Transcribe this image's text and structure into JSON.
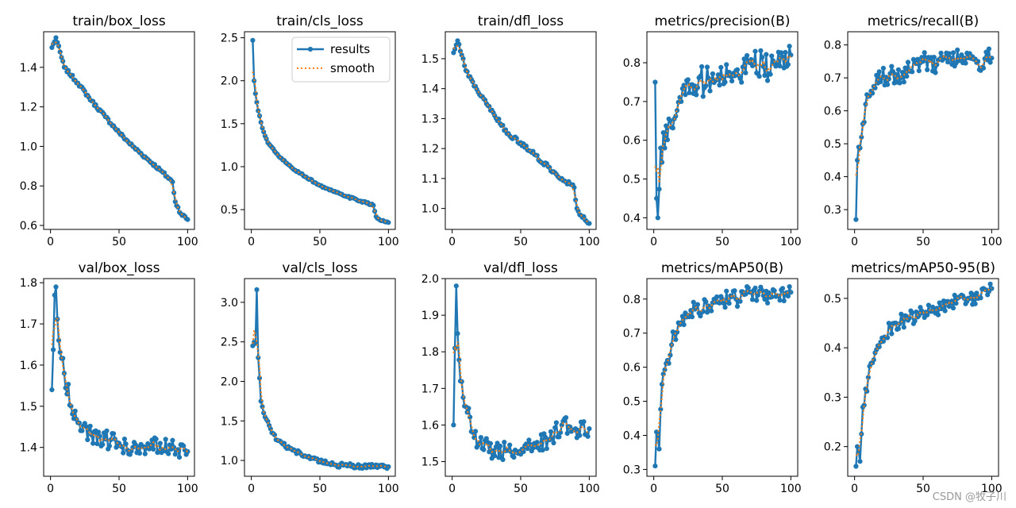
{
  "figure": {
    "watermark": "CSDN @牧子川",
    "legend_results": "results",
    "legend_smooth": "smooth"
  },
  "colors": {
    "results": "#1f77b4",
    "smooth": "#ff7f0e",
    "axis": "#000000"
  },
  "chart_data": [
    {
      "type": "line",
      "title": "train/box_loss",
      "xlim": [
        -5,
        105
      ],
      "ylim": [
        0.58,
        1.58
      ],
      "xticks": [
        0,
        50,
        100
      ],
      "yticks": [
        0.6,
        0.8,
        1.0,
        1.2,
        1.4
      ],
      "ytick_labels": [
        "0.6",
        "0.8",
        "1.0",
        "1.2",
        "1.4"
      ],
      "legend": false,
      "anchors": [
        [
          1,
          1.5
        ],
        [
          4,
          1.55
        ],
        [
          10,
          1.4
        ],
        [
          20,
          1.32
        ],
        [
          30,
          1.23
        ],
        [
          40,
          1.15
        ],
        [
          50,
          1.07
        ],
        [
          60,
          1.0
        ],
        [
          70,
          0.94
        ],
        [
          80,
          0.88
        ],
        [
          89,
          0.82
        ],
        [
          91,
          0.72
        ],
        [
          95,
          0.66
        ],
        [
          100,
          0.63
        ]
      ],
      "noise": 0.008
    },
    {
      "type": "line",
      "title": "train/cls_loss",
      "xlim": [
        -5,
        105
      ],
      "ylim": [
        0.27,
        2.57
      ],
      "xticks": [
        0,
        50,
        100
      ],
      "yticks": [
        0.5,
        1.0,
        1.5,
        2.0,
        2.5
      ],
      "ytick_labels": [
        "0.5",
        "1.0",
        "1.5",
        "2.0",
        "2.5"
      ],
      "legend": true,
      "anchors": [
        [
          1,
          2.47
        ],
        [
          2,
          2.0
        ],
        [
          3,
          1.85
        ],
        [
          5,
          1.65
        ],
        [
          8,
          1.45
        ],
        [
          12,
          1.28
        ],
        [
          20,
          1.12
        ],
        [
          30,
          0.98
        ],
        [
          40,
          0.88
        ],
        [
          50,
          0.78
        ],
        [
          60,
          0.71
        ],
        [
          70,
          0.65
        ],
        [
          80,
          0.6
        ],
        [
          89,
          0.55
        ],
        [
          91,
          0.42
        ],
        [
          95,
          0.37
        ],
        [
          100,
          0.35
        ]
      ],
      "noise": 0.01
    },
    {
      "type": "line",
      "title": "train/dfl_loss",
      "xlim": [
        -5,
        105
      ],
      "ylim": [
        0.93,
        1.59
      ],
      "xticks": [
        0,
        50,
        100
      ],
      "yticks": [
        1.0,
        1.1,
        1.2,
        1.3,
        1.4,
        1.5
      ],
      "ytick_labels": [
        "1.0",
        "1.1",
        "1.2",
        "1.3",
        "1.4",
        "1.5"
      ],
      "legend": false,
      "anchors": [
        [
          1,
          1.52
        ],
        [
          4,
          1.56
        ],
        [
          10,
          1.46
        ],
        [
          20,
          1.38
        ],
        [
          30,
          1.32
        ],
        [
          40,
          1.25
        ],
        [
          50,
          1.22
        ],
        [
          60,
          1.18
        ],
        [
          70,
          1.14
        ],
        [
          80,
          1.1
        ],
        [
          89,
          1.07
        ],
        [
          91,
          1.0
        ],
        [
          95,
          0.97
        ],
        [
          100,
          0.95
        ]
      ],
      "noise": 0.007
    },
    {
      "type": "line",
      "title": "metrics/precision(B)",
      "xlim": [
        -5,
        105
      ],
      "ylim": [
        0.37,
        0.88
      ],
      "xticks": [
        0,
        50,
        100
      ],
      "yticks": [
        0.4,
        0.5,
        0.6,
        0.7,
        0.8
      ],
      "ytick_labels": [
        "0.4",
        "0.5",
        "0.6",
        "0.7",
        "0.8"
      ],
      "legend": false,
      "anchors": [
        [
          1,
          0.75
        ],
        [
          2,
          0.45
        ],
        [
          3,
          0.4
        ],
        [
          5,
          0.58
        ],
        [
          8,
          0.58
        ],
        [
          12,
          0.65
        ],
        [
          20,
          0.7
        ],
        [
          30,
          0.74
        ],
        [
          40,
          0.76
        ],
        [
          50,
          0.76
        ],
        [
          60,
          0.78
        ],
        [
          70,
          0.8
        ],
        [
          80,
          0.79
        ],
        [
          90,
          0.8
        ],
        [
          100,
          0.82
        ]
      ],
      "noise": 0.04
    },
    {
      "type": "line",
      "title": "metrics/recall(B)",
      "xlim": [
        -5,
        105
      ],
      "ylim": [
        0.24,
        0.84
      ],
      "xticks": [
        0,
        50,
        100
      ],
      "yticks": [
        0.3,
        0.4,
        0.5,
        0.6,
        0.7,
        0.8
      ],
      "ytick_labels": [
        "0.3",
        "0.4",
        "0.5",
        "0.6",
        "0.7",
        "0.8"
      ],
      "legend": false,
      "anchors": [
        [
          1,
          0.27
        ],
        [
          2,
          0.45
        ],
        [
          3,
          0.49
        ],
        [
          5,
          0.52
        ],
        [
          8,
          0.62
        ],
        [
          12,
          0.66
        ],
        [
          20,
          0.7
        ],
        [
          30,
          0.71
        ],
        [
          40,
          0.72
        ],
        [
          50,
          0.75
        ],
        [
          60,
          0.74
        ],
        [
          70,
          0.76
        ],
        [
          80,
          0.76
        ],
        [
          90,
          0.75
        ],
        [
          100,
          0.76
        ]
      ],
      "noise": 0.03
    },
    {
      "type": "line",
      "title": "val/box_loss",
      "xlim": [
        -5,
        105
      ],
      "ylim": [
        1.33,
        1.81
      ],
      "xticks": [
        0,
        50,
        100
      ],
      "yticks": [
        1.4,
        1.5,
        1.6,
        1.7,
        1.8
      ],
      "ytick_labels": [
        "1.4",
        "1.5",
        "1.6",
        "1.7",
        "1.8"
      ],
      "legend": false,
      "anchors": [
        [
          1,
          1.54
        ],
        [
          3,
          1.77
        ],
        [
          4,
          1.79
        ],
        [
          6,
          1.66
        ],
        [
          10,
          1.58
        ],
        [
          15,
          1.5
        ],
        [
          20,
          1.46
        ],
        [
          30,
          1.43
        ],
        [
          40,
          1.42
        ],
        [
          50,
          1.41
        ],
        [
          60,
          1.4
        ],
        [
          70,
          1.4
        ],
        [
          80,
          1.41
        ],
        [
          90,
          1.4
        ],
        [
          100,
          1.39
        ]
      ],
      "noise": 0.022
    },
    {
      "type": "line",
      "title": "val/cls_loss",
      "xlim": [
        -5,
        105
      ],
      "ylim": [
        0.8,
        3.3
      ],
      "xticks": [
        0,
        50,
        100
      ],
      "yticks": [
        1.0,
        1.5,
        2.0,
        2.5,
        3.0
      ],
      "ytick_labels": [
        "1.0",
        "1.5",
        "2.0",
        "2.5",
        "3.0"
      ],
      "legend": false,
      "anchors": [
        [
          1,
          2.45
        ],
        [
          3,
          2.48
        ],
        [
          4,
          3.16
        ],
        [
          5,
          2.3
        ],
        [
          7,
          1.75
        ],
        [
          10,
          1.55
        ],
        [
          15,
          1.35
        ],
        [
          20,
          1.25
        ],
        [
          30,
          1.13
        ],
        [
          40,
          1.05
        ],
        [
          50,
          0.98
        ],
        [
          60,
          0.95
        ],
        [
          70,
          0.93
        ],
        [
          80,
          0.93
        ],
        [
          90,
          0.92
        ],
        [
          100,
          0.92
        ]
      ],
      "noise": 0.03
    },
    {
      "type": "line",
      "title": "val/dfl_loss",
      "xlim": [
        -5,
        105
      ],
      "ylim": [
        1.46,
        2.0
      ],
      "xticks": [
        0,
        50,
        100
      ],
      "yticks": [
        1.5,
        1.6,
        1.7,
        1.8,
        1.9,
        2.0
      ],
      "ytick_labels": [
        "1.5",
        "1.6",
        "1.7",
        "1.8",
        "1.9",
        "2.0"
      ],
      "legend": false,
      "anchors": [
        [
          1,
          1.6
        ],
        [
          3,
          1.98
        ],
        [
          4,
          1.85
        ],
        [
          6,
          1.72
        ],
        [
          10,
          1.65
        ],
        [
          15,
          1.58
        ],
        [
          20,
          1.55
        ],
        [
          30,
          1.53
        ],
        [
          40,
          1.53
        ],
        [
          50,
          1.52
        ],
        [
          60,
          1.55
        ],
        [
          70,
          1.56
        ],
        [
          80,
          1.6
        ],
        [
          90,
          1.59
        ],
        [
          100,
          1.59
        ]
      ],
      "noise": 0.025
    },
    {
      "type": "line",
      "title": "metrics/mAP50(B)",
      "xlim": [
        -5,
        105
      ],
      "ylim": [
        0.28,
        0.86
      ],
      "xticks": [
        0,
        50,
        100
      ],
      "yticks": [
        0.3,
        0.4,
        0.5,
        0.6,
        0.7,
        0.8
      ],
      "ytick_labels": [
        "0.3",
        "0.4",
        "0.5",
        "0.6",
        "0.7",
        "0.8"
      ],
      "legend": false,
      "anchors": [
        [
          1,
          0.31
        ],
        [
          2,
          0.41
        ],
        [
          4,
          0.36
        ],
        [
          6,
          0.55
        ],
        [
          10,
          0.62
        ],
        [
          15,
          0.7
        ],
        [
          20,
          0.73
        ],
        [
          30,
          0.77
        ],
        [
          40,
          0.78
        ],
        [
          50,
          0.8
        ],
        [
          60,
          0.8
        ],
        [
          70,
          0.82
        ],
        [
          80,
          0.81
        ],
        [
          90,
          0.81
        ],
        [
          100,
          0.82
        ]
      ],
      "noise": 0.025
    },
    {
      "type": "line",
      "title": "metrics/mAP50-95(B)",
      "xlim": [
        -5,
        105
      ],
      "ylim": [
        0.14,
        0.54
      ],
      "xticks": [
        0,
        50,
        100
      ],
      "yticks": [
        0.2,
        0.3,
        0.4,
        0.5
      ],
      "ytick_labels": [
        "0.2",
        "0.3",
        "0.4",
        "0.5"
      ],
      "legend": false,
      "anchors": [
        [
          1,
          0.16
        ],
        [
          2,
          0.2
        ],
        [
          4,
          0.17
        ],
        [
          6,
          0.28
        ],
        [
          10,
          0.34
        ],
        [
          15,
          0.39
        ],
        [
          20,
          0.42
        ],
        [
          30,
          0.45
        ],
        [
          40,
          0.46
        ],
        [
          50,
          0.47
        ],
        [
          60,
          0.48
        ],
        [
          70,
          0.49
        ],
        [
          80,
          0.5
        ],
        [
          90,
          0.5
        ],
        [
          100,
          0.52
        ]
      ],
      "noise": 0.015
    }
  ]
}
